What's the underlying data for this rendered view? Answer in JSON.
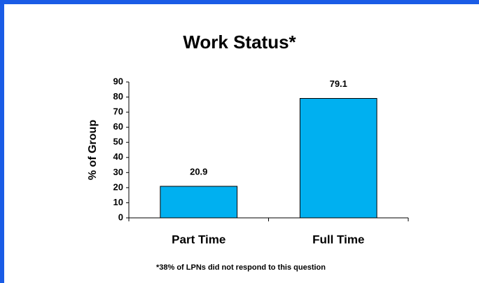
{
  "chart_data": {
    "type": "bar",
    "title": "Work Status*",
    "y_label": "% of Group",
    "categories": [
      "Part Time",
      "Full Time"
    ],
    "values": [
      20.9,
      79.1
    ],
    "color": "#00b0f0",
    "ylim": [
      0,
      90
    ],
    "yticks": [
      0,
      10,
      20,
      30,
      40,
      50,
      60,
      70,
      80,
      90
    ],
    "note": "*38% of LPNs did not respond to this question"
  }
}
